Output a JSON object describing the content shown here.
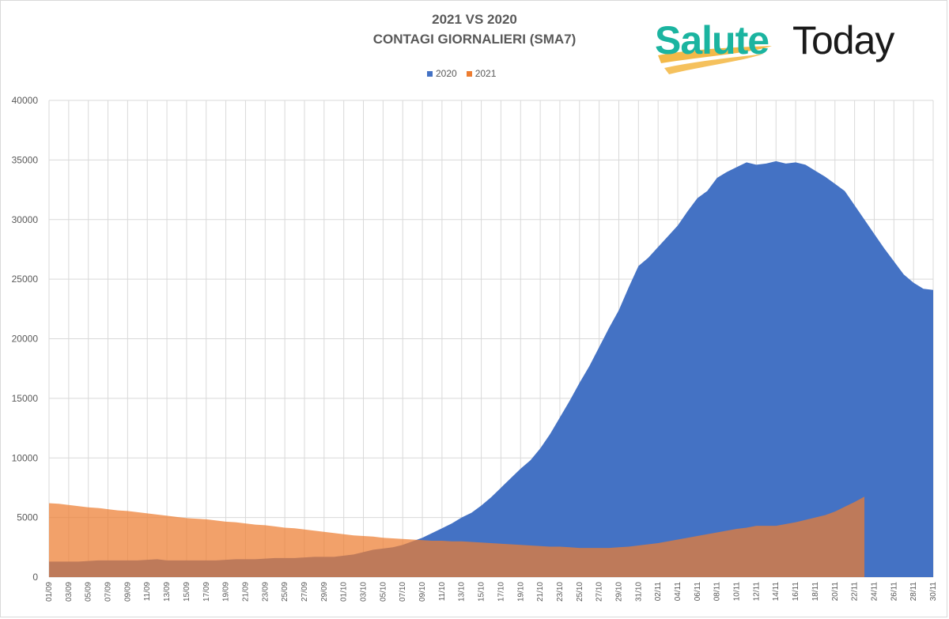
{
  "title": {
    "line1": "2021 VS 2020",
    "line2": "CONTAGI GIORNALIERI (SMA7)"
  },
  "logo": {
    "part1": "Salute",
    "part2": "Today",
    "accent_color": "#1bb4a0",
    "brush_color": "#f2b134",
    "dark_color": "#1a1a1a"
  },
  "chart_data": {
    "type": "area",
    "title": "2021 VS 2020 CONTAGI GIORNALIERI (SMA7)",
    "xlabel": "",
    "ylabel": "",
    "ylim": [
      0,
      40000
    ],
    "yticks": [
      0,
      5000,
      10000,
      15000,
      20000,
      25000,
      30000,
      35000,
      40000
    ],
    "grid": true,
    "legend_position": "top-center",
    "x_start": "01/09",
    "x_end": "30/11",
    "x_tick_labels": [
      "01/09",
      "03/09",
      "05/09",
      "07/09",
      "09/09",
      "11/09",
      "13/09",
      "15/09",
      "17/09",
      "19/09",
      "21/09",
      "23/09",
      "25/09",
      "27/09",
      "29/09",
      "01/10",
      "03/10",
      "05/10",
      "07/10",
      "09/10",
      "11/10",
      "13/10",
      "15/10",
      "17/10",
      "19/10",
      "21/10",
      "23/10",
      "25/10",
      "27/10",
      "29/10",
      "31/10",
      "02/11",
      "04/11",
      "06/11",
      "08/11",
      "10/11",
      "12/11",
      "14/11",
      "16/11",
      "18/11",
      "20/11",
      "22/11",
      "24/11",
      "26/11",
      "28/11",
      "30/11"
    ],
    "series": [
      {
        "name": "2020",
        "color": "#4472c4",
        "values": [
          1300,
          1300,
          1300,
          1300,
          1350,
          1400,
          1400,
          1400,
          1400,
          1400,
          1450,
          1500,
          1400,
          1400,
          1400,
          1400,
          1400,
          1400,
          1450,
          1500,
          1500,
          1500,
          1550,
          1600,
          1600,
          1600,
          1650,
          1700,
          1700,
          1700,
          1800,
          1900,
          2100,
          2300,
          2400,
          2500,
          2700,
          3000,
          3300,
          3700,
          4100,
          4500,
          5000,
          5400,
          6000,
          6700,
          7500,
          8300,
          9100,
          9800,
          10800,
          12000,
          13400,
          14800,
          16300,
          17700,
          19300,
          20900,
          22400,
          24300,
          26100,
          26800,
          27700,
          28600,
          29500,
          30700,
          31800,
          32400,
          33500,
          34000,
          34400,
          34800,
          34600,
          34700,
          34900,
          34700,
          34800,
          34600,
          34100,
          33600,
          33000,
          32400,
          31200,
          30000,
          28800,
          27600,
          26500,
          25400,
          24700,
          24200,
          24100
        ]
      },
      {
        "name": "2021",
        "color": "#ed7d31",
        "values": [
          6200,
          6150,
          6050,
          5950,
          5850,
          5800,
          5700,
          5600,
          5550,
          5450,
          5350,
          5250,
          5150,
          5050,
          4950,
          4900,
          4850,
          4750,
          4650,
          4600,
          4500,
          4400,
          4350,
          4250,
          4150,
          4100,
          4000,
          3900,
          3800,
          3700,
          3600,
          3500,
          3450,
          3400,
          3300,
          3250,
          3200,
          3150,
          3100,
          3050,
          3050,
          3000,
          3000,
          2950,
          2900,
          2850,
          2800,
          2750,
          2700,
          2650,
          2600,
          2550,
          2550,
          2500,
          2450,
          2450,
          2450,
          2450,
          2500,
          2550,
          2650,
          2750,
          2850,
          3000,
          3150,
          3300,
          3450,
          3600,
          3750,
          3900,
          4050,
          4150,
          4300,
          4300,
          4300,
          4450,
          4600,
          4800,
          5000,
          5200,
          5500,
          5900,
          6300,
          6750
        ]
      }
    ]
  }
}
